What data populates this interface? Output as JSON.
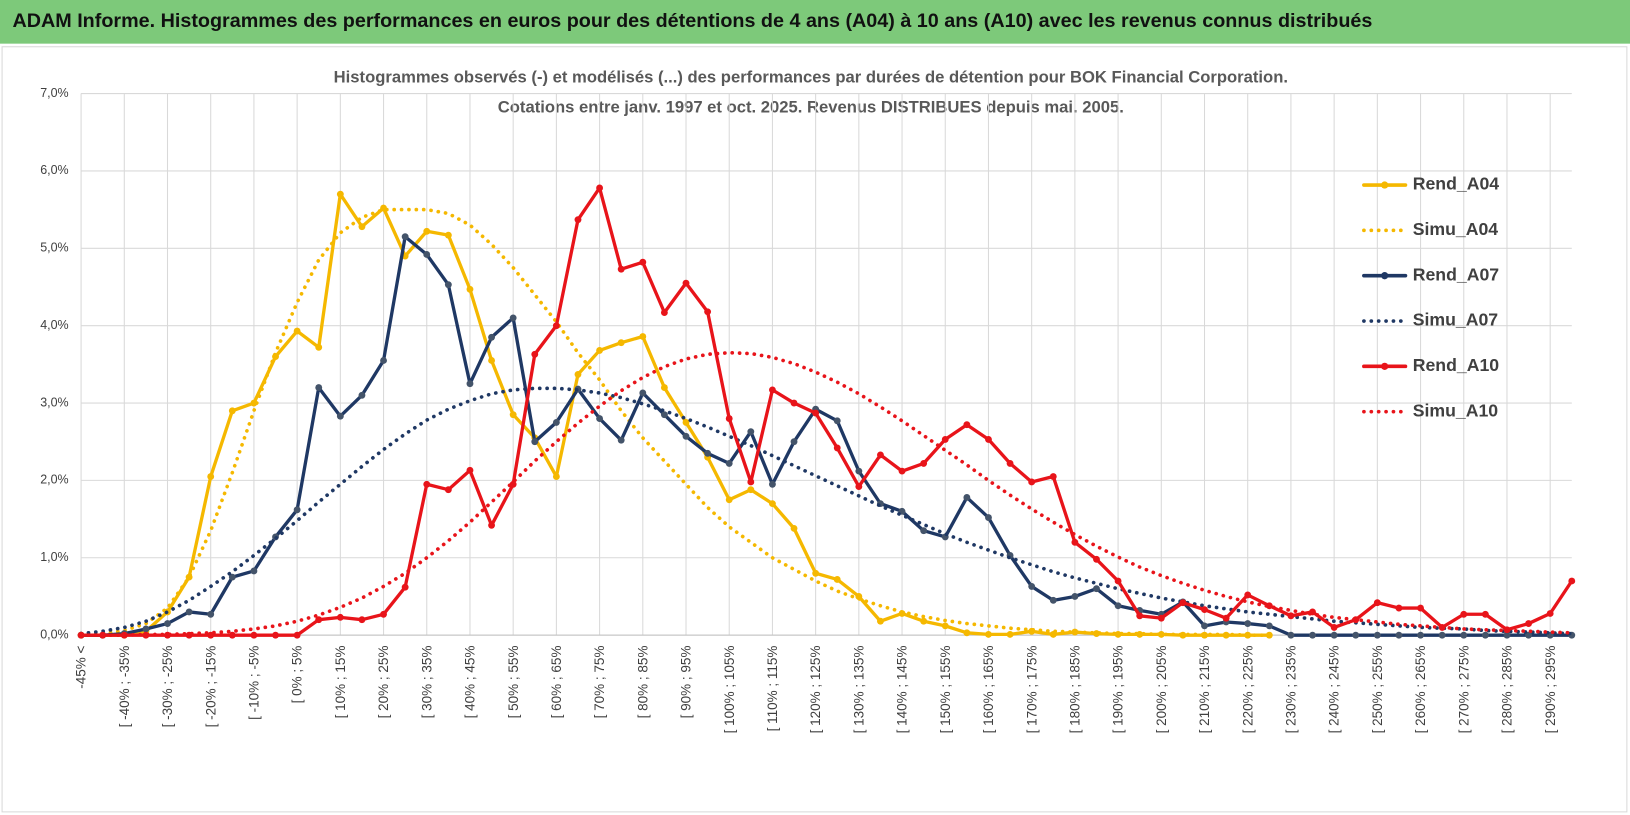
{
  "header": {
    "title": "ADAM Informe. Histogrammes des performances en euros pour des détentions de 4 ans (A04) à 10 ans (A10) avec les revenus connus distribués"
  },
  "chart_data": {
    "type": "line",
    "title": "Histogrammes observés (-) et modélisés (...) des performances par durées de détention pour BOK Financial Corporation.",
    "subtitle": "Cotations entre janv. 1997 et oct. 2025. Revenus DISTRIBUES depuis mai. 2005.",
    "categories": [
      "-45% <",
      null,
      "[ -40% ; -35%",
      null,
      "[ -30% ; -25%",
      null,
      "[ -20% ; -15%",
      null,
      "[ -10% ; -5%",
      null,
      "[ 0% ; 5%",
      null,
      "[ 10% ; 15%",
      null,
      "[ 20% ; 25%",
      null,
      "[ 30% ; 35%",
      null,
      "[ 40% ; 45%",
      null,
      "[ 50% ; 55%",
      null,
      "[ 60% ; 65%",
      null,
      "[ 70% ; 75%",
      null,
      "[ 80% ; 85%",
      null,
      "[ 90% ; 95%",
      null,
      "[ 100% ; 105%",
      null,
      "[ 110% ; 115%",
      null,
      "[ 120% ; 125%",
      null,
      "[ 130% ; 135%",
      null,
      "[ 140% ; 145%",
      null,
      "[ 150% ; 155%",
      null,
      "[ 160% ; 165%",
      null,
      "[ 170% ; 175%",
      null,
      "[ 180% ; 185%",
      null,
      "[ 190% ; 195%",
      null,
      "[ 200% ; 205%",
      null,
      "[ 210% ; 215%",
      null,
      "[ 220% ; 225%",
      null,
      "[ 230% ; 235%",
      null,
      "[ 240% ; 245%",
      null,
      "[ 250% ; 255%",
      null,
      "[ 260% ; 265%",
      null,
      "[ 270% ; 275%",
      null,
      "[ 280% ; 285%",
      null,
      "[ 290% ; 295%",
      null
    ],
    "ylim": [
      0,
      7
    ],
    "yticks": [
      {
        "value": 0,
        "label": "0,0%"
      },
      {
        "value": 1,
        "label": "1,0%"
      },
      {
        "value": 2,
        "label": "2,0%"
      },
      {
        "value": 3,
        "label": "3,0%"
      },
      {
        "value": 4,
        "label": "4,0%"
      },
      {
        "value": 5,
        "label": "5,0%"
      },
      {
        "value": 6,
        "label": "6,0%"
      },
      {
        "value": 7,
        "label": "7,0%"
      }
    ],
    "grid": true,
    "legend": "right",
    "series": [
      {
        "name": "Rend_A04",
        "color": "#f5b800",
        "style": "solid",
        "marker": true,
        "values": [
          0,
          0,
          0,
          0.05,
          0.3,
          0.75,
          2.05,
          2.9,
          3.0,
          3.6,
          3.93,
          3.72,
          5.7,
          5.28,
          5.52,
          4.9,
          5.22,
          5.17,
          4.47,
          3.55,
          2.85,
          2.55,
          2.05,
          3.37,
          3.68,
          3.78,
          3.86,
          3.2,
          2.75,
          2.3,
          1.75,
          1.88,
          1.7,
          1.38,
          0.8,
          0.72,
          0.5,
          0.18,
          0.28,
          0.18,
          0.12,
          0.03,
          0.01,
          0.01,
          0.05,
          0.01,
          0.04,
          0.02,
          0.01,
          0.01,
          0.01,
          0,
          0,
          0,
          0,
          0,
          null,
          null,
          null,
          null,
          null,
          null,
          null,
          null,
          null,
          null,
          null,
          null,
          null,
          null
        ]
      },
      {
        "name": "Simu_A04",
        "color": "#f5b800",
        "style": "dotted",
        "marker": false,
        "values": [
          0,
          0.02,
          0.06,
          0.15,
          0.35,
          0.75,
          1.35,
          2.1,
          2.9,
          3.65,
          4.3,
          4.85,
          5.2,
          5.4,
          5.5,
          5.5,
          5.5,
          5.45,
          5.3,
          5.05,
          4.75,
          4.4,
          4.05,
          3.65,
          3.3,
          2.9,
          2.55,
          2.25,
          1.95,
          1.65,
          1.4,
          1.2,
          1.0,
          0.85,
          0.7,
          0.57,
          0.47,
          0.38,
          0.3,
          0.24,
          0.19,
          0.15,
          0.12,
          0.09,
          0.07,
          0.05,
          0.04,
          0.03,
          0.02,
          0.02,
          0.01,
          0.01,
          0.01,
          0.01,
          0,
          0,
          null,
          null,
          null,
          null,
          null,
          null,
          null,
          null,
          null,
          null,
          null,
          null,
          null,
          null
        ]
      },
      {
        "name": "Rend_A07",
        "color": "#1f3864",
        "style": "solid",
        "marker": true,
        "values": [
          0,
          0,
          0.02,
          0.08,
          0.15,
          0.3,
          0.27,
          0.75,
          0.83,
          1.27,
          1.62,
          3.2,
          2.83,
          3.1,
          3.55,
          5.15,
          4.92,
          4.53,
          3.25,
          3.85,
          4.1,
          2.5,
          2.75,
          3.18,
          2.8,
          2.52,
          3.13,
          2.85,
          2.57,
          2.35,
          2.22,
          2.63,
          1.95,
          2.5,
          2.92,
          2.77,
          2.12,
          1.7,
          1.6,
          1.35,
          1.27,
          1.78,
          1.52,
          1.03,
          0.63,
          0.45,
          0.5,
          0.6,
          0.38,
          0.32,
          0.27,
          0.43,
          0.12,
          0.17,
          0.15,
          0.12,
          0,
          0,
          0,
          0,
          0,
          0,
          0,
          0,
          0,
          0,
          0,
          0,
          0,
          0
        ]
      },
      {
        "name": "Simu_A07",
        "color": "#1f3864",
        "style": "dotted",
        "marker": false,
        "values": [
          0.02,
          0.05,
          0.1,
          0.18,
          0.3,
          0.45,
          0.63,
          0.82,
          1.03,
          1.25,
          1.48,
          1.72,
          1.95,
          2.18,
          2.4,
          2.6,
          2.78,
          2.92,
          3.03,
          3.12,
          3.17,
          3.19,
          3.19,
          3.17,
          3.13,
          3.07,
          2.99,
          2.9,
          2.8,
          2.69,
          2.57,
          2.45,
          2.32,
          2.19,
          2.06,
          1.93,
          1.8,
          1.67,
          1.55,
          1.43,
          1.31,
          1.2,
          1.1,
          1.0,
          0.91,
          0.82,
          0.74,
          0.67,
          0.6,
          0.54,
          0.48,
          0.43,
          0.38,
          0.34,
          0.3,
          0.27,
          0.24,
          0.21,
          0.18,
          0.16,
          0.14,
          0.12,
          0.1,
          0.09,
          0.08,
          0.06,
          0.05,
          0.04,
          0.03,
          0.02
        ]
      },
      {
        "name": "Rend_A10",
        "color": "#e8141a",
        "style": "solid",
        "marker": true,
        "values": [
          0,
          0,
          0,
          0,
          0,
          0,
          0,
          0,
          0,
          0,
          0,
          0.2,
          0.23,
          0.2,
          0.27,
          0.62,
          1.95,
          1.88,
          2.13,
          1.42,
          1.95,
          3.63,
          4.0,
          5.37,
          5.78,
          4.73,
          4.82,
          4.17,
          4.55,
          4.18,
          2.8,
          1.98,
          3.17,
          3.0,
          2.87,
          2.42,
          1.92,
          2.33,
          2.12,
          2.22,
          2.53,
          2.72,
          2.53,
          2.22,
          1.98,
          2.05,
          1.2,
          0.98,
          0.7,
          0.25,
          0.22,
          0.42,
          0.33,
          0.22,
          0.52,
          0.38,
          0.25,
          0.3,
          0.1,
          0.2,
          0.42,
          0.35,
          0.35,
          0.1,
          0.27,
          0.27,
          0.07,
          0.15,
          0.28,
          0.7
        ]
      },
      {
        "name": "Simu_A10",
        "color": "#e8141a",
        "style": "dotted",
        "marker": false,
        "values": [
          0,
          0,
          0,
          0.01,
          0.01,
          0.02,
          0.03,
          0.05,
          0.08,
          0.12,
          0.18,
          0.26,
          0.36,
          0.48,
          0.63,
          0.8,
          1.0,
          1.22,
          1.46,
          1.72,
          1.98,
          2.25,
          2.5,
          2.74,
          2.96,
          3.16,
          3.33,
          3.47,
          3.57,
          3.63,
          3.65,
          3.64,
          3.59,
          3.51,
          3.4,
          3.27,
          3.12,
          2.95,
          2.77,
          2.58,
          2.39,
          2.2,
          2.0,
          1.81,
          1.63,
          1.46,
          1.3,
          1.15,
          1.01,
          0.88,
          0.77,
          0.67,
          0.58,
          0.5,
          0.43,
          0.37,
          0.32,
          0.27,
          0.23,
          0.2,
          0.17,
          0.14,
          0.12,
          0.1,
          0.08,
          0.07,
          0.06,
          0.05,
          0.04,
          0.03
        ]
      }
    ]
  }
}
